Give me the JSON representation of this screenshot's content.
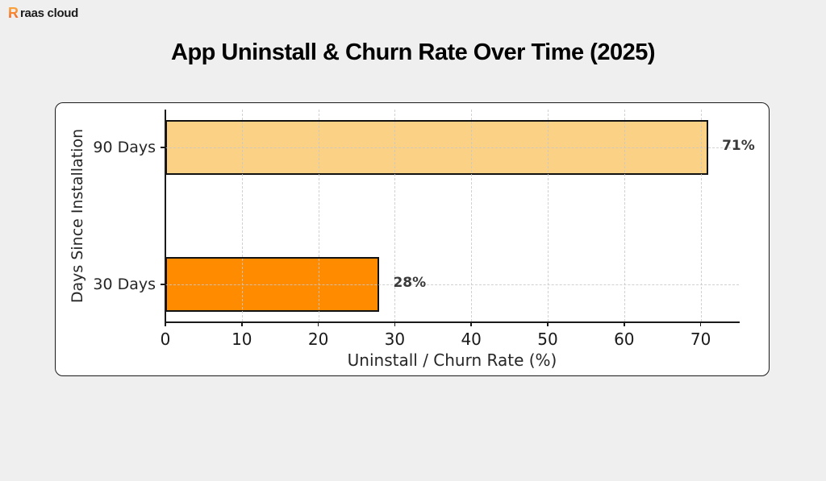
{
  "page": {
    "background": "#EFEFEF"
  },
  "logo": {
    "icon_letter": "R",
    "text": "raas cloud",
    "icon_color": "#F68920"
  },
  "title": "App Uninstall & Churn Rate Over Time (2025)",
  "chart_data": {
    "type": "bar",
    "orientation": "horizontal",
    "title": "App Uninstall & Churn Rate Over Time (2025)",
    "categories": [
      "90 Days",
      "30 Days"
    ],
    "values": [
      71,
      28
    ],
    "value_labels": [
      "71%",
      "28%"
    ],
    "bar_colors": [
      "#FBD185",
      "#FF8C00"
    ],
    "bar_edge_color": "#111111",
    "xlabel": "Uninstall / Churn Rate (%)",
    "ylabel": "Days Since Installation",
    "xlim": [
      0,
      75
    ],
    "xticks": [
      0,
      10,
      20,
      30,
      40,
      50,
      60,
      70
    ],
    "grid": true,
    "grid_style": "dashed",
    "grid_color": "#C9C9C9",
    "plot_background": "#FFFFFF",
    "legend": "none"
  }
}
